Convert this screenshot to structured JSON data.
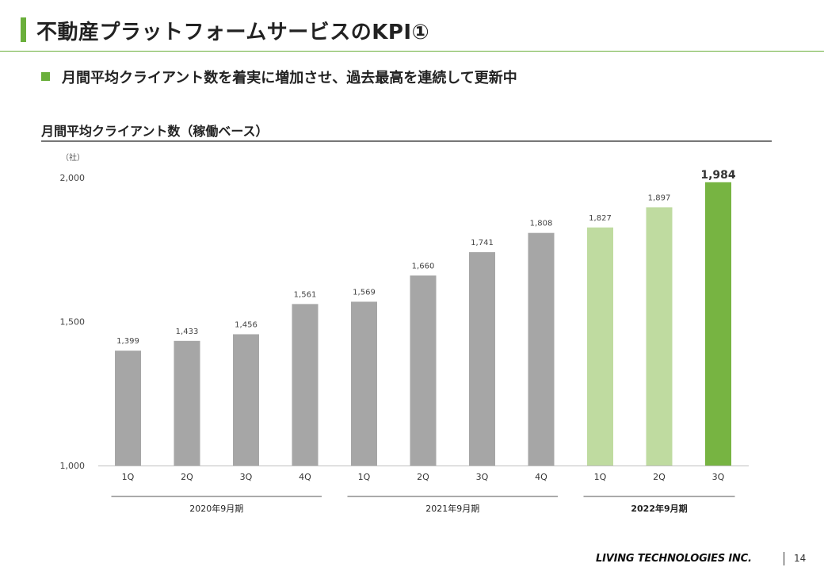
{
  "slide": {
    "title": "不動産プラットフォームサービスのKPI①",
    "bullet": "月間平均クライアント数を着実に増加させ、過去最高を連続して更新中",
    "chart_heading": "月間平均クライアント数（稼働ベース）",
    "footer_logo": "LIVING TECHNOLOGIES INC.",
    "page_number": "14"
  },
  "colors": {
    "accent": "#6aaf3b",
    "bar_gray": "#a6a6a6",
    "bar_light_green": "#bfdba0",
    "bar_green": "#77b442"
  },
  "chart_data": {
    "type": "bar",
    "unit_label": "（社）",
    "ylim": [
      1000,
      2000
    ],
    "yticks": [
      1000,
      1500,
      2000
    ],
    "ytick_labels": [
      "1,000",
      "1,500",
      "2,000"
    ],
    "categories": [
      "1Q",
      "2Q",
      "3Q",
      "4Q",
      "1Q",
      "2Q",
      "3Q",
      "4Q",
      "1Q",
      "2Q",
      "3Q"
    ],
    "values": [
      1399,
      1433,
      1456,
      1561,
      1569,
      1660,
      1741,
      1808,
      1827,
      1897,
      1984
    ],
    "value_labels": [
      "1,399",
      "1,433",
      "1,456",
      "1,561",
      "1,569",
      "1,660",
      "1,741",
      "1,808",
      "1,827",
      "1,897",
      "1,984"
    ],
    "bar_color_keys": [
      "bar_gray",
      "bar_gray",
      "bar_gray",
      "bar_gray",
      "bar_gray",
      "bar_gray",
      "bar_gray",
      "bar_gray",
      "bar_light_green",
      "bar_light_green",
      "bar_green"
    ],
    "groups": [
      {
        "label": "2020年9月期",
        "first": 0,
        "last": 3,
        "bold": false
      },
      {
        "label": "2021年9月期",
        "first": 4,
        "last": 7,
        "bold": false
      },
      {
        "label": "2022年9月期",
        "first": 8,
        "last": 10,
        "bold": true
      }
    ],
    "highlight_index": 10,
    "grid": false
  }
}
